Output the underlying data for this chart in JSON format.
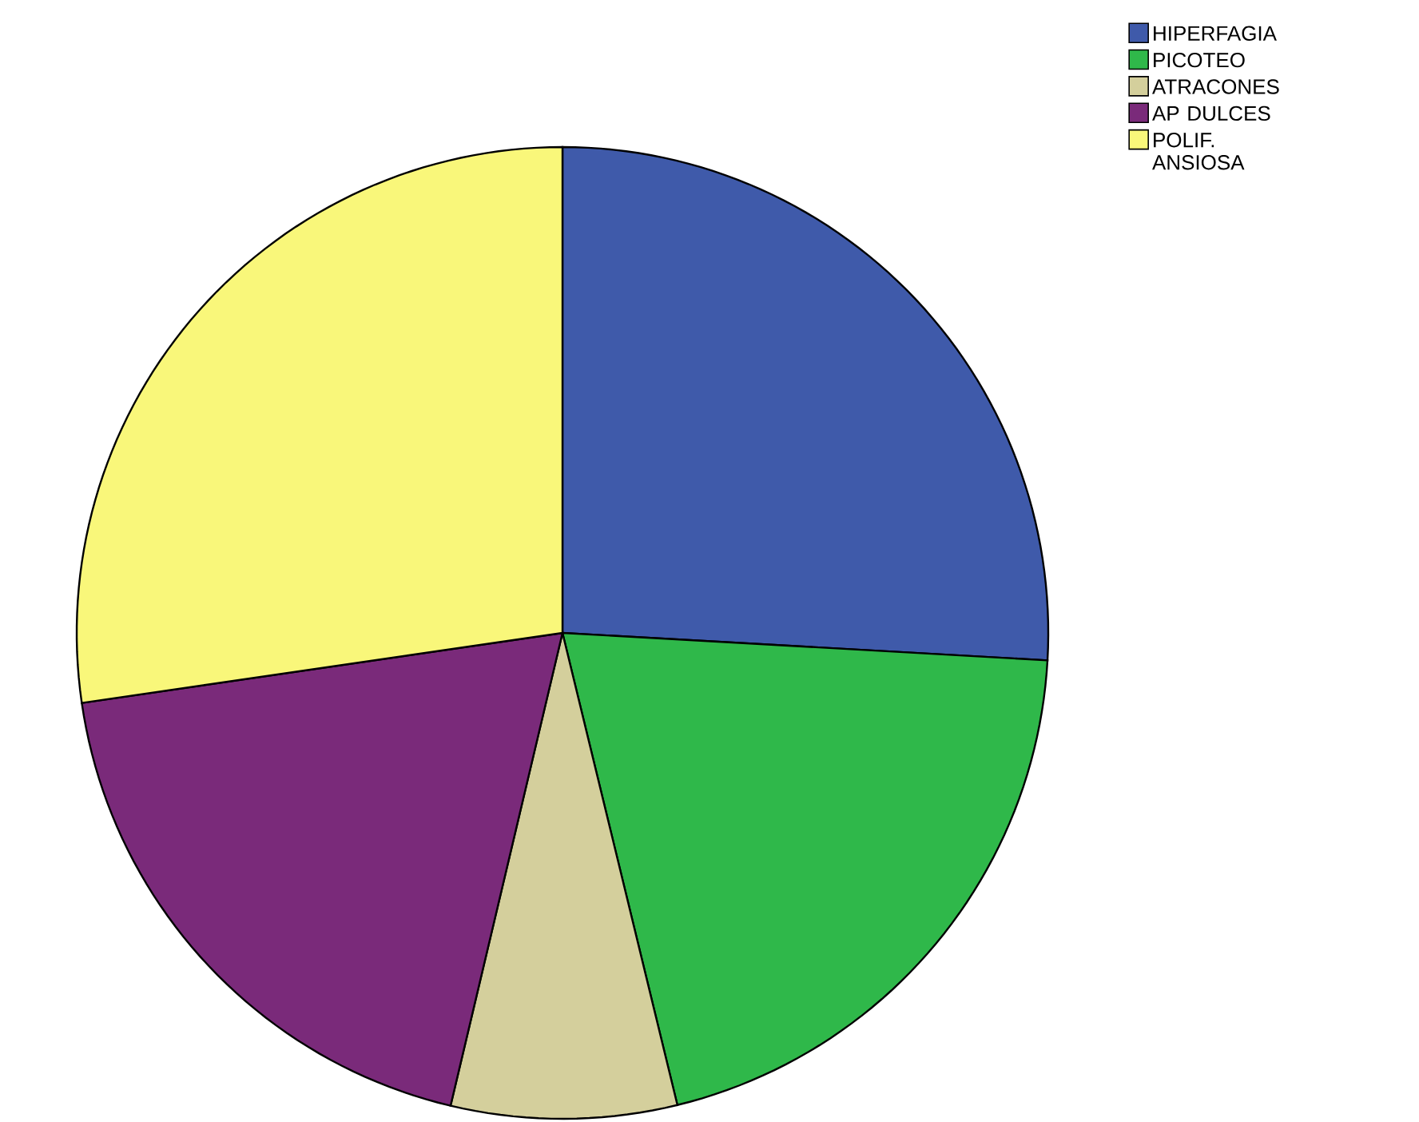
{
  "chart_data": {
    "type": "pie",
    "categories": [
      "HIPERFAGIA",
      "PICOTEO",
      "ATRACONES",
      "AP DULCES",
      "POLIF. ANSIOSA"
    ],
    "values": [
      25.9,
      20.3,
      7.5,
      19.0,
      27.3
    ],
    "colors": [
      "#3f5aaa",
      "#2fb84a",
      "#d4cf9c",
      "#7a2a7a",
      "#f9f77a"
    ],
    "legend": "top right"
  }
}
